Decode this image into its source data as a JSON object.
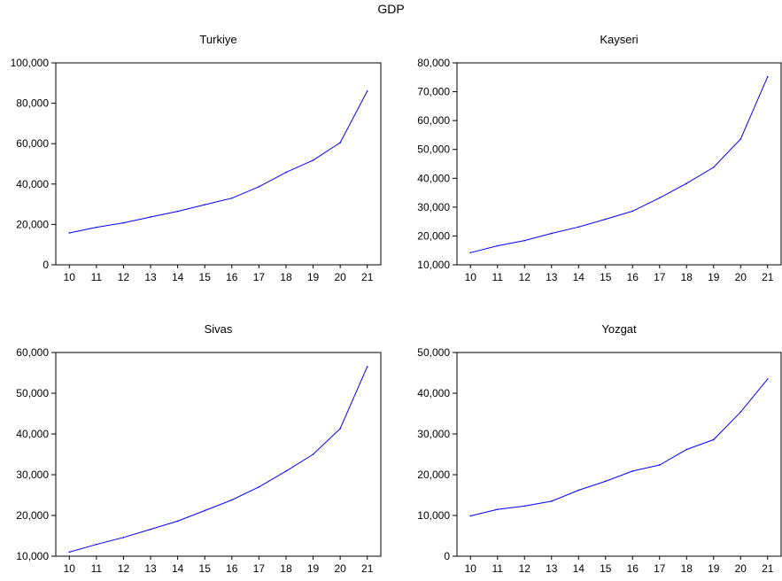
{
  "figure_title": "GDP",
  "chart_data": [
    {
      "type": "line",
      "title": "Turkiye",
      "x": [
        "10",
        "11",
        "12",
        "13",
        "14",
        "15",
        "16",
        "17",
        "18",
        "19",
        "20",
        "21"
      ],
      "series": [
        {
          "values": [
            15800,
            18600,
            20800,
            23700,
            26500,
            29800,
            33000,
            38700,
            45800,
            51800,
            60500,
            86000
          ],
          "color": "#0000ff"
        }
      ],
      "ylim": [
        0,
        100000
      ],
      "yticks": [
        0,
        20000,
        40000,
        60000,
        80000,
        100000
      ],
      "ytick_labels": [
        "0",
        "20,000",
        "40,000",
        "60,000",
        "80,000",
        "100,000"
      ]
    },
    {
      "type": "line",
      "title": "Kayseri",
      "x": [
        "10",
        "11",
        "12",
        "13",
        "14",
        "15",
        "16",
        "17",
        "18",
        "19",
        "20",
        "21"
      ],
      "series": [
        {
          "values": [
            14200,
            16600,
            18400,
            20900,
            23100,
            25800,
            28600,
            33200,
            38200,
            43800,
            53600,
            75200
          ],
          "color": "#0000ff"
        }
      ],
      "ylim": [
        10000,
        80000
      ],
      "yticks": [
        10000,
        20000,
        30000,
        40000,
        50000,
        60000,
        70000,
        80000
      ],
      "ytick_labels": [
        "10,000",
        "20,000",
        "30,000",
        "40,000",
        "50,000",
        "60,000",
        "70,000",
        "80,000"
      ]
    },
    {
      "type": "line",
      "title": "Sivas",
      "x": [
        "10",
        "11",
        "12",
        "13",
        "14",
        "15",
        "16",
        "17",
        "18",
        "19",
        "20",
        "21"
      ],
      "series": [
        {
          "values": [
            11000,
            12900,
            14600,
            16600,
            18600,
            21200,
            23800,
            27000,
            30900,
            35000,
            41300,
            56500
          ],
          "color": "#0000ff"
        }
      ],
      "ylim": [
        10000,
        60000
      ],
      "yticks": [
        10000,
        20000,
        30000,
        40000,
        50000,
        60000
      ],
      "ytick_labels": [
        "10,000",
        "20,000",
        "30,000",
        "40,000",
        "50,000",
        "60,000"
      ]
    },
    {
      "type": "line",
      "title": "Yozgat",
      "x": [
        "10",
        "11",
        "12",
        "13",
        "14",
        "15",
        "16",
        "17",
        "18",
        "19",
        "20",
        "21"
      ],
      "series": [
        {
          "values": [
            9900,
            11500,
            12300,
            13500,
            16200,
            18400,
            20900,
            22400,
            26200,
            28600,
            35400,
            43500
          ],
          "color": "#0000ff"
        }
      ],
      "ylim": [
        0,
        50000
      ],
      "yticks": [
        0,
        10000,
        20000,
        30000,
        40000,
        50000
      ],
      "ytick_labels": [
        "0",
        "10,000",
        "20,000",
        "30,000",
        "40,000",
        "50,000"
      ]
    }
  ]
}
